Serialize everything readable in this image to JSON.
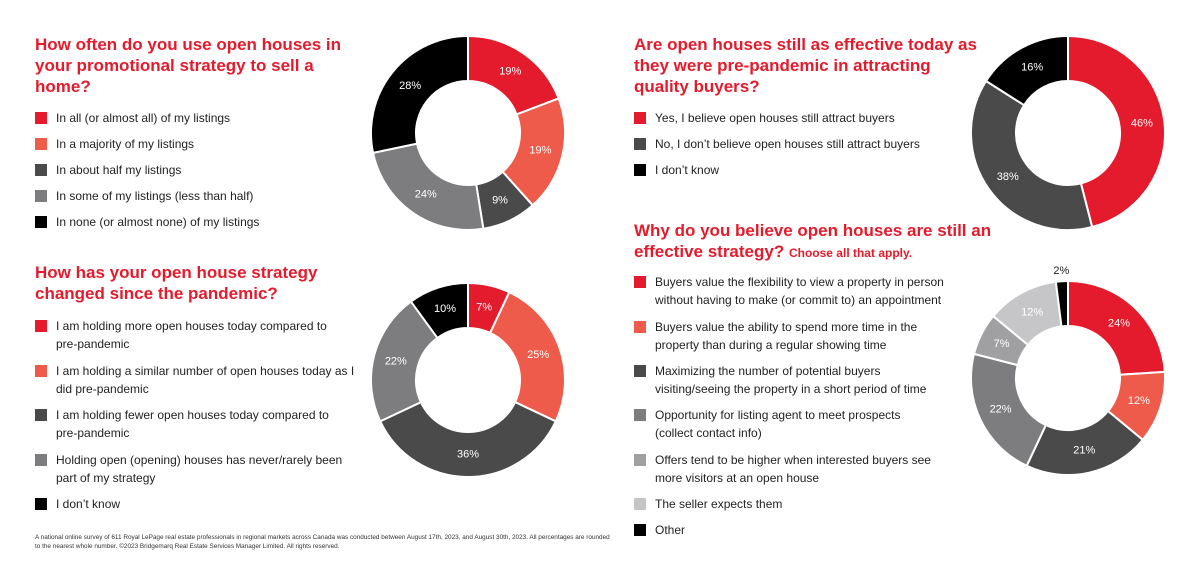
{
  "charts": [
    {
      "title": "How often do you use open houses in your promotional strategy to sell a home?",
      "subtitle": "",
      "legend": [
        {
          "label": "In all (or almost all) of my listings",
          "color": "#e41b2c"
        },
        {
          "label": "In a majority of my listings",
          "color": "#ee5b4a"
        },
        {
          "label": "In about half my listings",
          "color": "#4a4a4a"
        },
        {
          "label": "In some of my listings (less than half)",
          "color": "#7d7d80"
        },
        {
          "label": "In none (or almost none) of my listings",
          "color": "#000000"
        }
      ]
    },
    {
      "title": "How has your open house strategy changed since the pandemic?",
      "subtitle": "",
      "legend": [
        {
          "label": "I am holding more open houses today compared to pre-pandemic",
          "color": "#e41b2c"
        },
        {
          "label": "I am holding a similar number of open houses today as I did pre-pandemic",
          "color": "#ee5b4a"
        },
        {
          "label": "I am holding fewer open houses today compared to pre-pandemic",
          "color": "#4a4a4a"
        },
        {
          "label": "Holding open (opening) houses has never/rarely been part of my strategy",
          "color": "#7d7d80"
        },
        {
          "label": "I don’t know",
          "color": "#000000"
        }
      ]
    },
    {
      "title": "Are open houses still as effective today as they were pre-pandemic in attracting quality buyers?",
      "subtitle": "",
      "legend": [
        {
          "label": "Yes, I believe open houses still attract buyers",
          "color": "#e41b2c"
        },
        {
          "label": "No, I don’t believe open houses still attract buyers",
          "color": "#4a4a4a"
        },
        {
          "label": "I don’t know",
          "color": "#000000"
        }
      ]
    },
    {
      "title": "Why do you believe open houses are still an effective strategy?",
      "subtitle": "Choose all that apply.",
      "legend": [
        {
          "label": "Buyers value the flexibility to view a property in person without having to make (or commit to) an appointment",
          "color": "#e41b2c"
        },
        {
          "label": "Buyers value the ability to spend more time in the property than during a regular showing time",
          "color": "#ee5b4a"
        },
        {
          "label": "Maximizing the number of potential buyers visiting/seeing the property in a short period of time",
          "color": "#4a4a4a"
        },
        {
          "label": "Opportunity for listing agent to meet prospects (collect contact info)",
          "color": "#7d7d80"
        },
        {
          "label": "Offers tend to be higher when interested buyers see more visitors at an open house",
          "color": "#a0a0a3"
        },
        {
          "label": "The seller expects them",
          "color": "#c6c6c8"
        },
        {
          "label": "Other",
          "color": "#000000"
        }
      ]
    }
  ],
  "chart_data": [
    {
      "type": "pie",
      "title": "How often do you use open houses in your promotional strategy to sell a home?",
      "categories": [
        "In all (or almost all) of my listings",
        "In a majority of my listings",
        "In about half my listings",
        "In some of my listings (less than half)",
        "In none (or almost none) of my listings"
      ],
      "values": [
        19,
        19,
        9,
        24,
        28
      ],
      "labels": [
        "19%",
        "19%",
        "9%",
        "24%",
        "28%"
      ],
      "colors": [
        "#e41b2c",
        "#ee5b4a",
        "#4a4a4a",
        "#7d7d80",
        "#000000"
      ],
      "label_colors": [
        "#ffffff",
        "#ffffff",
        "#ffffff",
        "#ffffff",
        "#ffffff"
      ]
    },
    {
      "type": "pie",
      "title": "How has your open house strategy changed since the pandemic?",
      "categories": [
        "I am holding more open houses today compared to pre-pandemic",
        "I am holding a similar number of open houses today as I did pre-pandemic",
        "I am holding fewer open houses today compared to pre-pandemic",
        "Holding open (opening) houses has never/rarely been part of my strategy",
        "I don’t know"
      ],
      "values": [
        7,
        25,
        36,
        22,
        10
      ],
      "labels": [
        "7%",
        "25%",
        "36%",
        "22%",
        "10%"
      ],
      "colors": [
        "#e41b2c",
        "#ee5b4a",
        "#4a4a4a",
        "#7d7d80",
        "#000000"
      ],
      "label_colors": [
        "#ffffff",
        "#ffffff",
        "#ffffff",
        "#ffffff",
        "#ffffff"
      ]
    },
    {
      "type": "pie",
      "title": "Are open houses still as effective today as they were pre-pandemic in attracting quality buyers?",
      "categories": [
        "Yes, I believe open houses still attract buyers",
        "No, I don’t believe open houses still attract buyers",
        "I don’t know"
      ],
      "values": [
        46,
        38,
        16
      ],
      "labels": [
        "46%",
        "38%",
        "16%"
      ],
      "colors": [
        "#e41b2c",
        "#4a4a4a",
        "#000000"
      ],
      "label_colors": [
        "#ffffff",
        "#ffffff",
        "#ffffff"
      ]
    },
    {
      "type": "pie",
      "title": "Why do you believe open houses are still an effective strategy? Choose all that apply.",
      "categories": [
        "Buyers value the flexibility to view a property in person without having to make (or commit to) an appointment",
        "Buyers value the ability to spend more time in the property than during a regular showing time",
        "Maximizing the number of potential buyers visiting/seeing the property in a short period of time",
        "Opportunity for listing agent to meet prospects (collect contact info)",
        "Offers tend to be higher when interested buyers see more visitors at an open house",
        "The seller expects them",
        "Other"
      ],
      "values": [
        24,
        12,
        21,
        22,
        7,
        12,
        2
      ],
      "labels": [
        "24%",
        "12%",
        "21%",
        "22%",
        "7%",
        "12%",
        "2%"
      ],
      "colors": [
        "#e41b2c",
        "#ee5b4a",
        "#4a4a4a",
        "#7d7d80",
        "#a0a0a3",
        "#c6c6c8",
        "#000000"
      ],
      "label_colors": [
        "#ffffff",
        "#ffffff",
        "#ffffff",
        "#ffffff",
        "#ffffff",
        "#ffffff",
        "#222222"
      ]
    }
  ],
  "footnote": "A national online survey of 611 Royal LePage real estate professionals in regional markets across Canada was conducted between August 17th, 2023, and August 30th, 2023. All percentages are rounded to the nearest whole number. ©2023 Bridgemarq Real Estate Services Manager Limited. All rights reserved."
}
